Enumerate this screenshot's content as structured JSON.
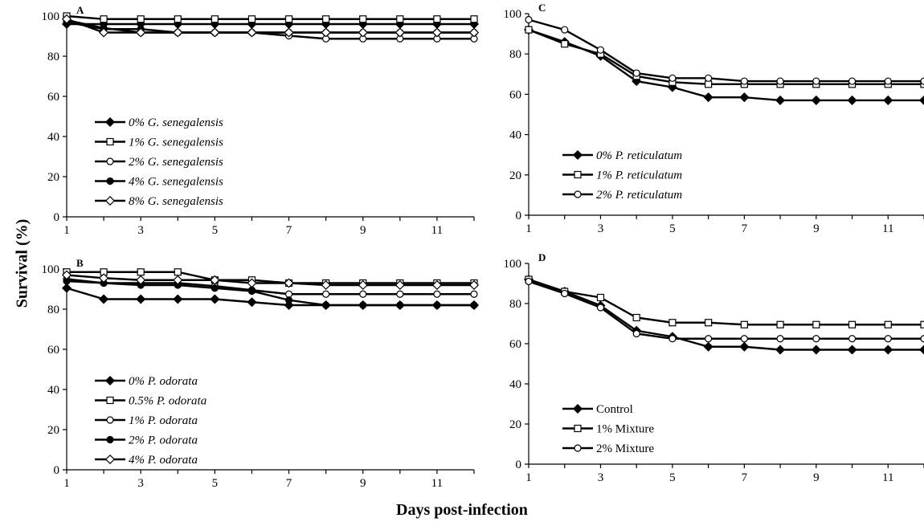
{
  "figure": {
    "xlabel": "Days post-infection",
    "ylabel": "Survival (%)"
  },
  "chart_data": [
    {
      "type": "line",
      "panel": "A",
      "x": [
        1,
        2,
        3,
        4,
        5,
        6,
        7,
        8,
        9,
        10,
        11,
        12
      ],
      "xticks": [
        1,
        3,
        5,
        7,
        9,
        11
      ],
      "yticks": [
        0,
        20,
        40,
        60,
        80,
        100
      ],
      "ylim": [
        0,
        100
      ],
      "xlim": [
        1,
        12
      ],
      "legend_position": "lower-left",
      "series": [
        {
          "name": "0% G. senegalensis",
          "marker": "diamond-filled",
          "values": [
            96,
            96,
            96,
            96,
            96,
            96,
            96,
            96,
            96,
            96,
            96,
            96
          ]
        },
        {
          "name": "1% G. senegalensis",
          "marker": "square-open",
          "values": [
            100,
            98.5,
            98.5,
            98.5,
            98.5,
            98.5,
            98.5,
            98.5,
            98.5,
            98.5,
            98.5,
            98.5
          ]
        },
        {
          "name": "2% G. senegalensis",
          "marker": "circle-open",
          "values": [
            98,
            94,
            91.8,
            91.8,
            91.8,
            91.8,
            90.2,
            88.7,
            88.7,
            88.7,
            88.7,
            88.7
          ]
        },
        {
          "name": "4% G. senegalensis",
          "marker": "circle-filled",
          "values": [
            97,
            93.5,
            93.5,
            91.8,
            91.8,
            91.8,
            91.8,
            91.8,
            91.8,
            91.8,
            91.8,
            91.8
          ]
        },
        {
          "name": "8% G. senegalensis",
          "marker": "diamond-open",
          "values": [
            98.5,
            91.8,
            91.8,
            91.8,
            91.8,
            91.8,
            91.8,
            91.8,
            91.8,
            91.8,
            91.8,
            91.8
          ]
        }
      ]
    },
    {
      "type": "line",
      "panel": "B",
      "x": [
        1,
        2,
        3,
        4,
        5,
        6,
        7,
        8,
        9,
        10,
        11,
        12
      ],
      "xticks": [
        1,
        3,
        5,
        7,
        9,
        11
      ],
      "yticks": [
        0,
        20,
        40,
        60,
        80,
        100
      ],
      "ylim": [
        0,
        100
      ],
      "xlim": [
        1,
        12
      ],
      "legend_position": "lower-left",
      "series": [
        {
          "name": "0% P. odorata",
          "marker": "diamond-filled",
          "values": [
            90.5,
            85,
            85,
            85,
            85,
            83.5,
            82,
            82,
            82,
            82,
            82,
            82
          ]
        },
        {
          "name": "0.5% P. odorata",
          "marker": "square-open",
          "values": [
            98.5,
            98.5,
            98.5,
            98.5,
            94.5,
            94.5,
            93,
            93,
            93,
            93,
            93,
            93
          ]
        },
        {
          "name": "1% P. odorata",
          "marker": "circle-open",
          "values": [
            95,
            93,
            93,
            93,
            91.5,
            89.5,
            87.5,
            87.5,
            87.5,
            87.5,
            87.5,
            87.5
          ]
        },
        {
          "name": "2% P. odorata",
          "marker": "circle-filled",
          "values": [
            94,
            93,
            92,
            92,
            90.5,
            89,
            84.5,
            82,
            82,
            82,
            82,
            82
          ]
        },
        {
          "name": "4% P. odorata",
          "marker": "diamond-open",
          "values": [
            97,
            95.5,
            94.5,
            94.5,
            94.5,
            93,
            93,
            92,
            92,
            92,
            92,
            92
          ]
        }
      ]
    },
    {
      "type": "line",
      "panel": "C",
      "x": [
        1,
        2,
        3,
        4,
        5,
        6,
        7,
        8,
        9,
        10,
        11,
        12
      ],
      "xticks": [
        1,
        3,
        5,
        7,
        9,
        11
      ],
      "yticks": [
        0,
        20,
        40,
        60,
        80,
        100
      ],
      "ylim": [
        0,
        100
      ],
      "xlim": [
        1,
        12
      ],
      "legend_position": "lower-left",
      "series": [
        {
          "name": "0% P. reticulatum",
          "marker": "diamond-filled",
          "values": [
            92,
            86,
            79,
            66.5,
            63.5,
            58.5,
            58.5,
            57,
            57,
            57,
            57,
            57
          ]
        },
        {
          "name": "1% P. reticulatum",
          "marker": "square-open",
          "values": [
            92,
            85,
            80,
            69,
            66,
            65,
            65,
            65,
            65,
            65,
            65,
            65
          ]
        },
        {
          "name": "2% P. reticulatum",
          "marker": "circle-open",
          "values": [
            97,
            92,
            82,
            70.5,
            68,
            68,
            66.5,
            66.5,
            66.5,
            66.5,
            66.5,
            66.5
          ]
        }
      ]
    },
    {
      "type": "line",
      "panel": "D",
      "x": [
        1,
        2,
        3,
        4,
        5,
        6,
        7,
        8,
        9,
        10,
        11,
        12
      ],
      "xticks": [
        1,
        3,
        5,
        7,
        9,
        11
      ],
      "yticks": [
        0,
        20,
        40,
        60,
        80,
        100
      ],
      "ylim": [
        0,
        100
      ],
      "xlim": [
        1,
        12
      ],
      "legend_position": "lower-left",
      "series": [
        {
          "name": "Control",
          "marker": "diamond-filled",
          "values": [
            92,
            86,
            79,
            66.5,
            63.5,
            58.5,
            58.5,
            57,
            57,
            57,
            57,
            57
          ]
        },
        {
          "name": "1% Mixture",
          "marker": "square-open",
          "values": [
            92,
            86,
            83,
            73,
            70.5,
            70.5,
            69.5,
            69.5,
            69.5,
            69.5,
            69.5,
            69.5
          ]
        },
        {
          "name": "2% Mixture",
          "marker": "circle-open",
          "values": [
            91,
            85,
            78,
            65,
            62.5,
            62.5,
            62.5,
            62.5,
            62.5,
            62.5,
            62.5,
            62.5
          ]
        }
      ]
    }
  ]
}
